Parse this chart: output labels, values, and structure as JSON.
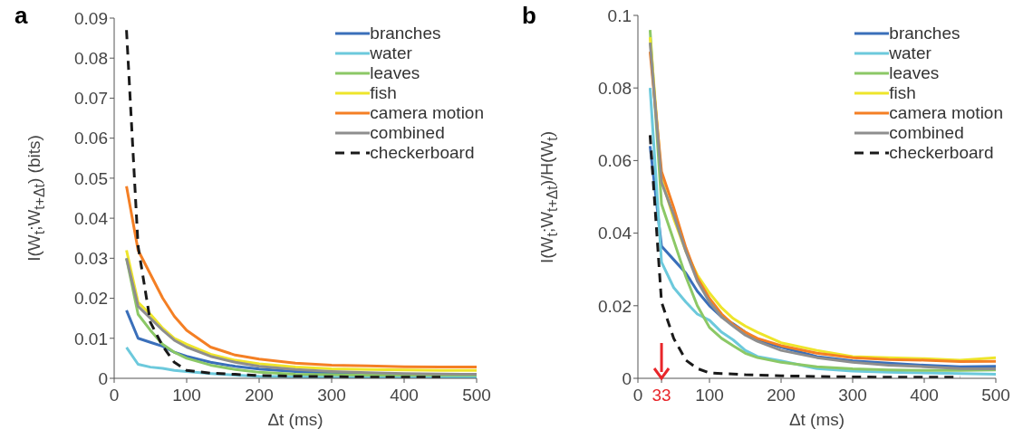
{
  "chart_data": [
    {
      "type": "line",
      "title": "a",
      "xlabel": "Δt (ms)",
      "ylabel": "I(W$_{t}$;W$_{t+Δt}$) (bits)",
      "legend": "top right",
      "x": [
        17,
        33,
        50,
        67,
        83,
        100,
        133,
        167,
        200,
        250,
        300,
        350,
        400,
        450,
        500
      ],
      "xlim": [
        0,
        500
      ],
      "xticks": [
        0,
        100,
        200,
        300,
        400,
        500
      ],
      "ylim": [
        0,
        0.09
      ],
      "yticks": [
        0,
        0.01,
        0.02,
        0.03,
        0.04,
        0.05,
        0.06,
        0.07,
        0.08,
        0.09
      ],
      "series": [
        {
          "name": "branches",
          "color": "#3a6fba",
          "values": [
            0.017,
            0.01,
            0.009,
            0.008,
            0.0065,
            0.0055,
            0.004,
            0.003,
            0.0023,
            0.0017,
            0.0013,
            0.0012,
            null,
            null,
            null
          ]
        },
        {
          "name": "water",
          "color": "#6cc9dc",
          "values": [
            0.0077,
            0.0035,
            0.0028,
            0.0025,
            0.002,
            0.0017,
            0.0012,
            0.0008,
            0.0005,
            0.0004,
            0.0003,
            0.0002,
            0.0001,
            0.0001,
            0.0001
          ]
        },
        {
          "name": "leaves",
          "color": "#8cc866",
          "values": [
            0.03,
            0.016,
            0.012,
            0.0085,
            0.0065,
            0.005,
            0.0033,
            0.0022,
            0.0015,
            0.001,
            0.0009,
            0.0008,
            0.0008,
            0.0008,
            0.0008
          ]
        },
        {
          "name": "fish",
          "color": "#eee52a",
          "values": [
            0.032,
            0.019,
            0.016,
            0.0125,
            0.01,
            0.0085,
            0.006,
            0.0045,
            0.0036,
            0.0028,
            0.0024,
            0.0022,
            0.0021,
            0.002,
            0.002
          ]
        },
        {
          "name": "camera motion",
          "color": "#f47f24",
          "values": [
            0.048,
            0.032,
            0.026,
            0.02,
            0.0155,
            0.012,
            0.0078,
            0.0058,
            0.0048,
            0.0038,
            0.0033,
            0.0031,
            0.0029,
            0.0028,
            0.0028
          ]
        },
        {
          "name": "combined",
          "color": "#8e8e8e",
          "values": [
            0.03,
            0.018,
            0.015,
            0.012,
            0.0095,
            0.0078,
            0.0055,
            0.004,
            0.003,
            0.0022,
            0.0017,
            0.0014,
            0.0012,
            0.0011,
            0.001
          ]
        },
        {
          "name": "checkerboard",
          "color": "#1a1a1a",
          "line_style": "dashed",
          "values": [
            0.087,
            0.033,
            0.014,
            0.008,
            0.004,
            0.002,
            0.0013,
            0.001,
            0.0007,
            0.0005,
            0.0004,
            0.0003,
            0.0003,
            0.0003,
            null
          ]
        }
      ]
    },
    {
      "type": "line",
      "title": "b",
      "xlabel": "Δt (ms)",
      "ylabel": "I(W$_{t}$;W$_{t+Δt}$)/H(W$_{t}$)",
      "legend": "top right",
      "x": [
        17,
        33,
        50,
        67,
        83,
        100,
        117,
        133,
        150,
        167,
        200,
        250,
        300,
        350,
        400,
        450,
        500
      ],
      "xlim": [
        0,
        500
      ],
      "xticks": [
        0,
        {
          "value": 33,
          "label": "33"
        },
        100,
        200,
        300,
        400,
        500
      ],
      "ylim": [
        0,
        0.1
      ],
      "yticks": [
        0,
        0.02,
        0.04,
        0.06,
        0.08,
        0.1
      ],
      "series": [
        {
          "name": "branches",
          "color": "#3a6fba",
          "values": [
            0.064,
            0.0364,
            0.0327,
            0.029,
            0.024,
            0.02,
            0.0169,
            0.015,
            0.0127,
            0.0106,
            0.0086,
            0.006,
            0.0048,
            0.0042,
            0.0036,
            0.0032,
            0.0033
          ]
        },
        {
          "name": "water",
          "color": "#6cc9dc",
          "values": [
            0.08,
            0.032,
            0.025,
            0.021,
            0.0177,
            0.016,
            0.0127,
            0.0106,
            0.0077,
            0.006,
            0.0048,
            0.0027,
            0.002,
            0.0017,
            0.0015,
            0.0013,
            0.0011
          ]
        },
        {
          "name": "leaves",
          "color": "#8cc866",
          "values": [
            0.096,
            0.048,
            0.038,
            0.028,
            0.02,
            0.014,
            0.011,
            0.009,
            0.0069,
            0.0057,
            0.0044,
            0.0032,
            0.0026,
            0.0023,
            0.0022,
            0.0022,
            0.0023
          ]
        },
        {
          "name": "fish",
          "color": "#eee52a",
          "values": [
            0.094,
            0.055,
            0.044,
            0.035,
            0.0285,
            0.0235,
            0.0194,
            0.0165,
            0.0144,
            0.0127,
            0.0098,
            0.0077,
            0.006,
            0.0057,
            0.0054,
            0.005,
            0.0057
          ]
        },
        {
          "name": "camera motion",
          "color": "#f47f24",
          "values": [
            0.09,
            0.057,
            0.047,
            0.036,
            0.0277,
            0.022,
            0.0177,
            0.0148,
            0.0127,
            0.011,
            0.009,
            0.0069,
            0.0057,
            0.0052,
            0.005,
            0.0046,
            0.0047
          ]
        },
        {
          "name": "combined",
          "color": "#8e8e8e",
          "values": [
            0.0925,
            0.054,
            0.045,
            0.035,
            0.0268,
            0.021,
            0.0169,
            0.0144,
            0.0119,
            0.0102,
            0.0077,
            0.0057,
            0.0044,
            0.0036,
            0.0032,
            0.0027,
            0.0026
          ]
        },
        {
          "name": "checkerboard",
          "color": "#1a1a1a",
          "line_style": "dashed",
          "values": [
            0.067,
            0.021,
            0.011,
            0.005,
            0.0027,
            0.0015,
            0.0013,
            0.0012,
            0.001,
            0.0009,
            0.0007,
            0.0005,
            0.0004,
            0.0003,
            0.0003,
            0.0003,
            null
          ]
        }
      ]
    }
  ]
}
